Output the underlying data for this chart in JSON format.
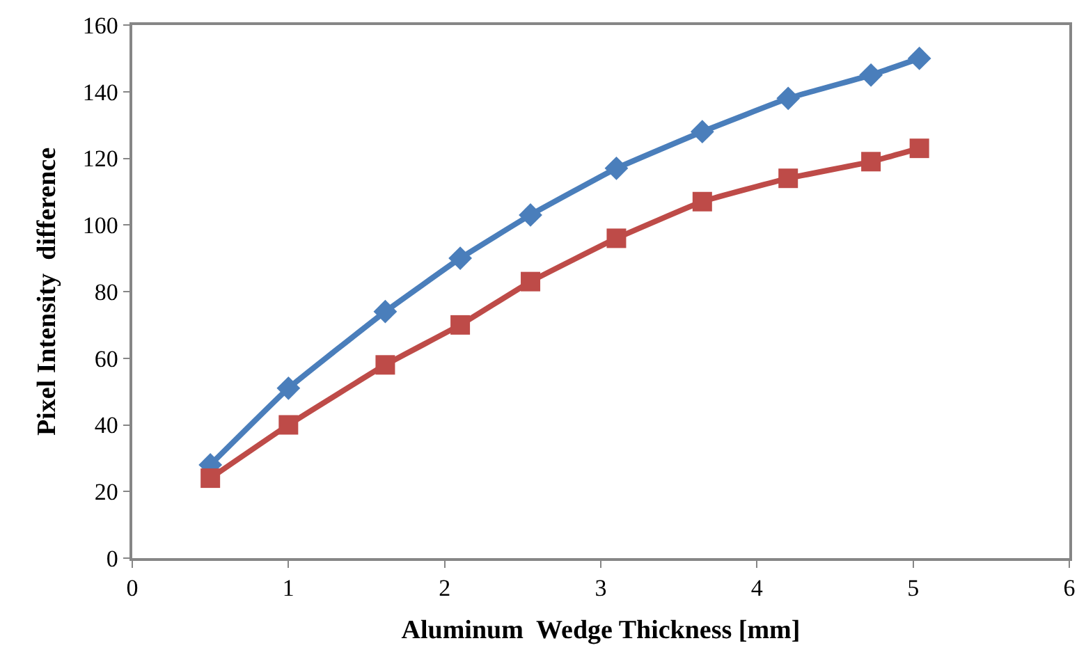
{
  "chart_data": {
    "type": "line",
    "xlabel": "Aluminum  Wedge Thickness [mm]",
    "ylabel": "Pixel Intensity  difference",
    "x": [
      0.5,
      1.0,
      1.62,
      2.1,
      2.55,
      3.1,
      3.65,
      4.2,
      4.73,
      5.04
    ],
    "series": [
      {
        "color": "#4a7ebb",
        "marker": "diamond",
        "values": [
          28,
          51,
          74,
          90,
          103,
          117,
          128,
          138,
          145,
          150
        ]
      },
      {
        "color": "#be4b48",
        "marker": "square",
        "values": [
          24,
          40,
          58,
          70,
          83,
          96,
          107,
          114,
          119,
          123
        ]
      }
    ],
    "xlim": [
      0,
      6
    ],
    "xticks": [
      0,
      1,
      2,
      3,
      4,
      5,
      6
    ],
    "ylim": [
      0,
      160
    ],
    "yticks": [
      0,
      20,
      40,
      60,
      80,
      100,
      120,
      140,
      160
    ],
    "line_style": "solid"
  }
}
